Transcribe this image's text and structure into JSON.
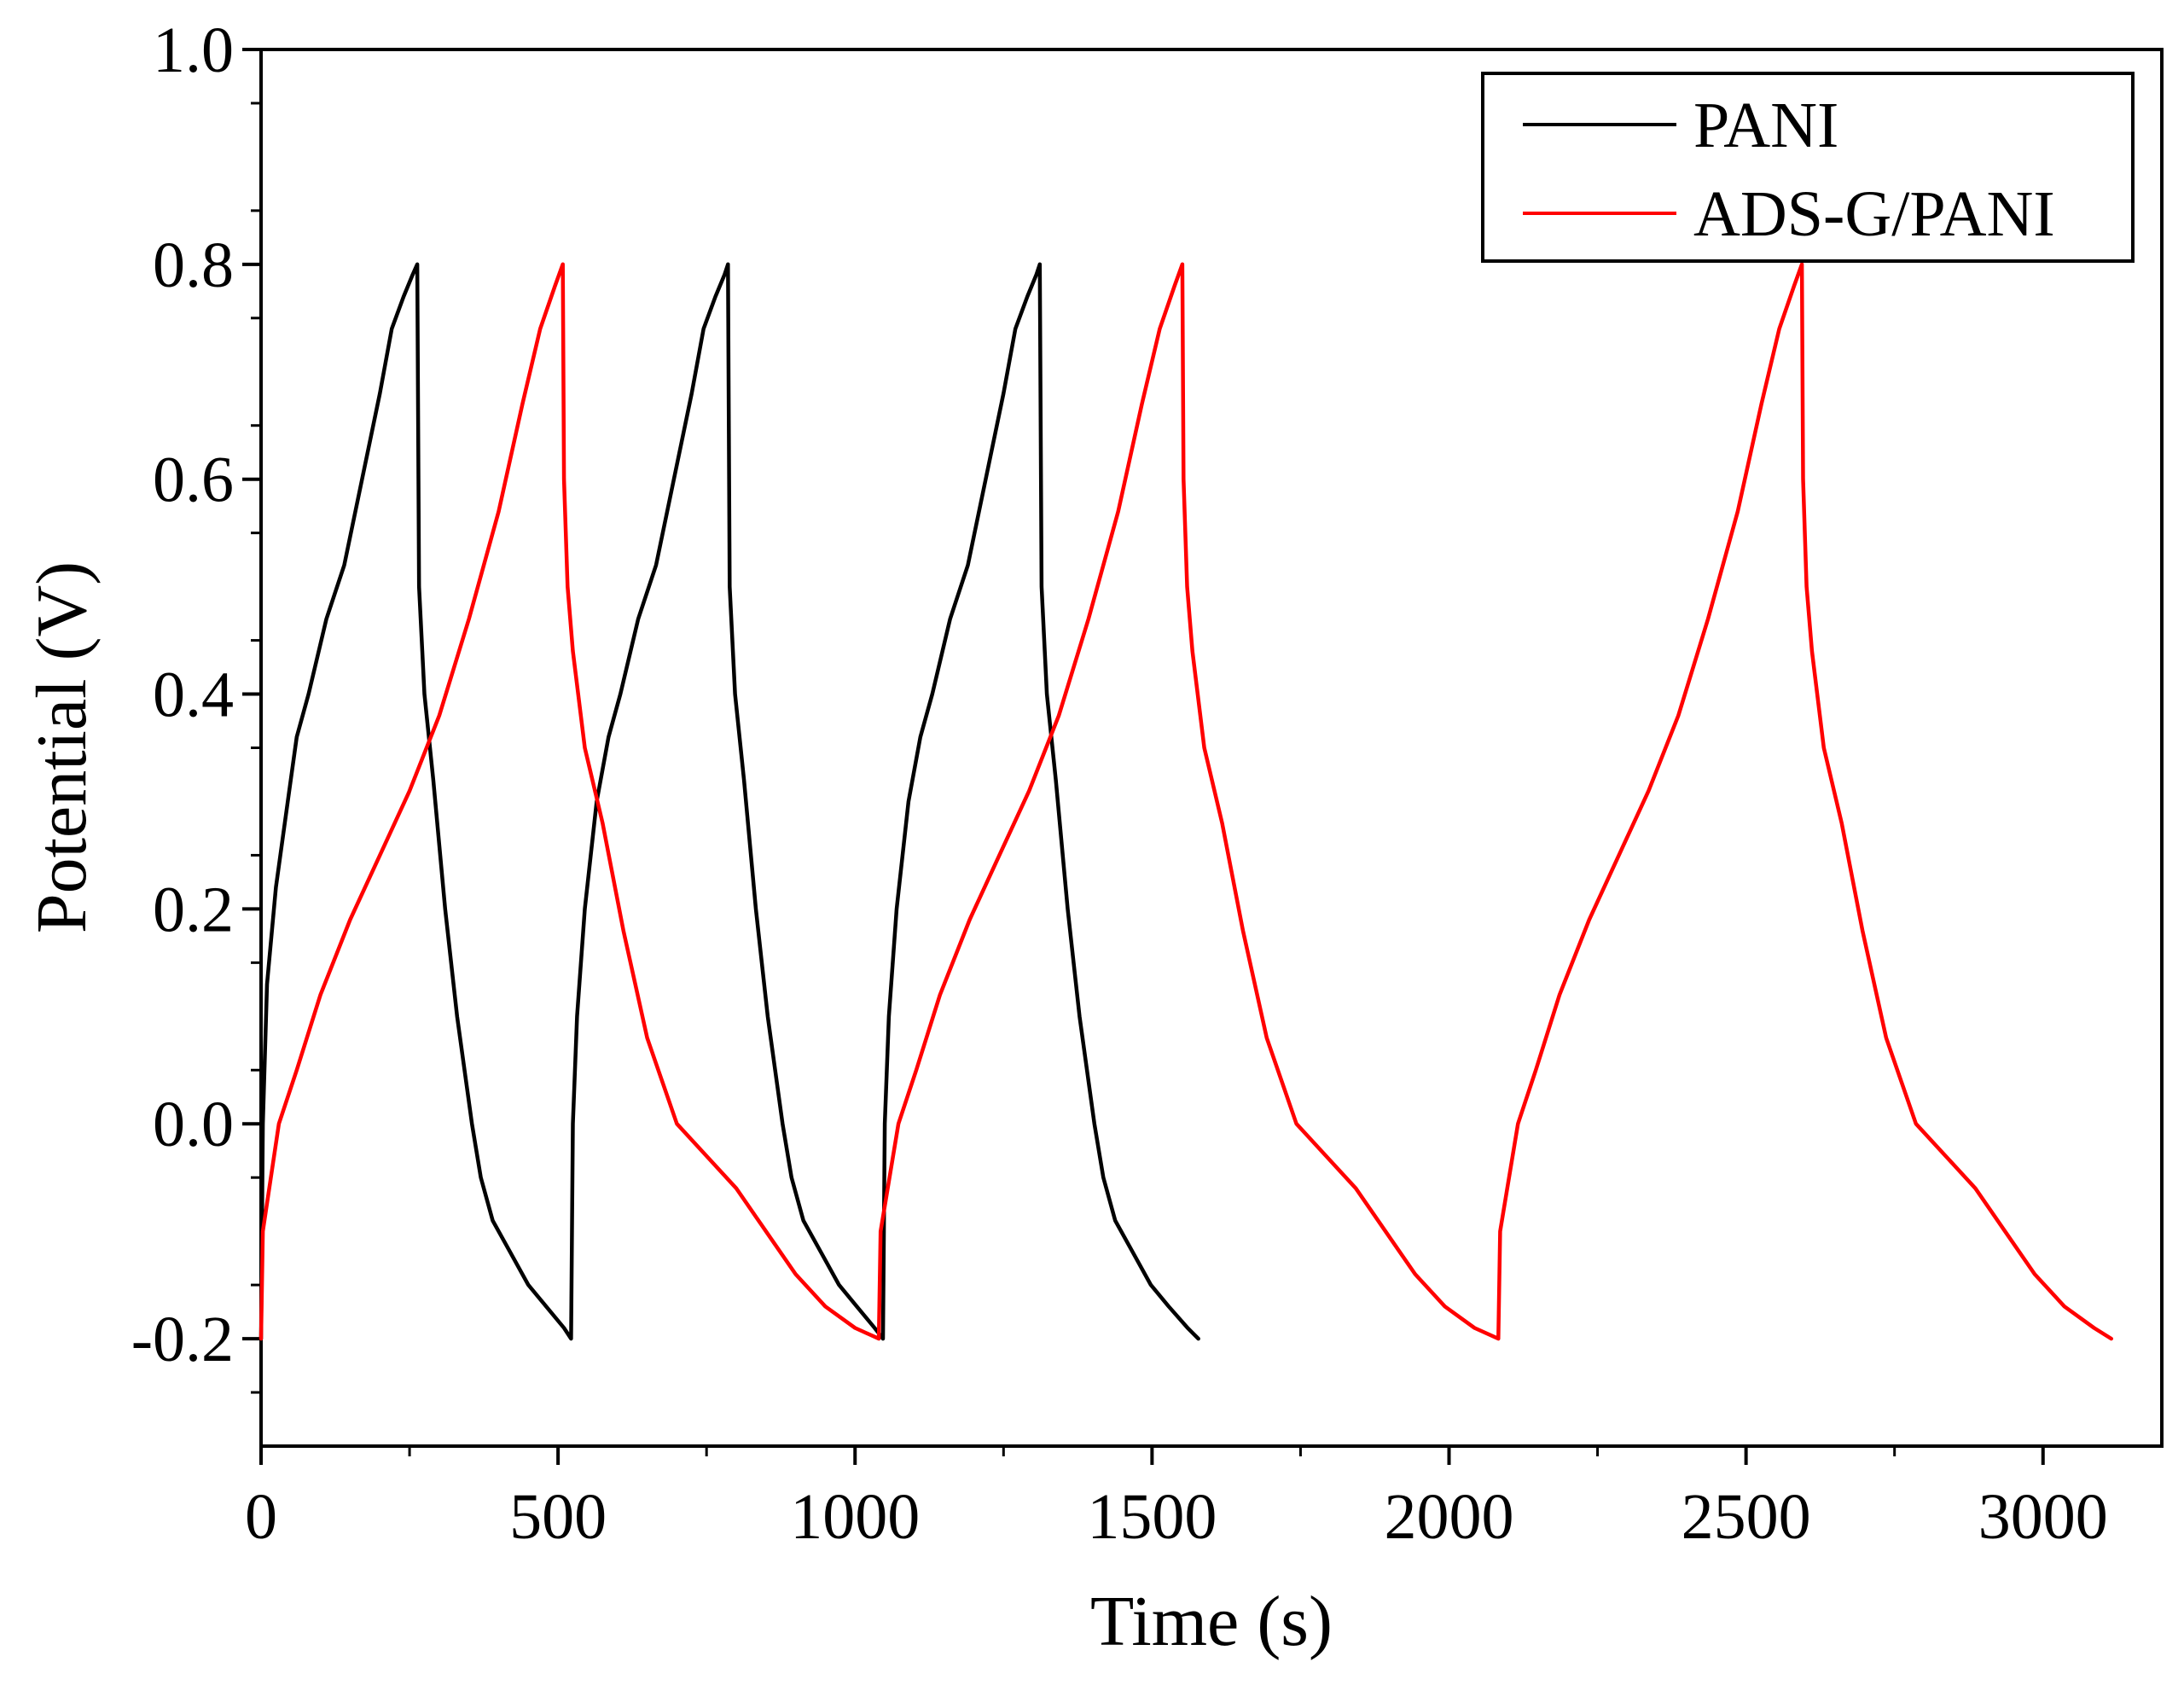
{
  "chart_data": {
    "type": "line",
    "title": "",
    "xlabel": "Time (s)",
    "ylabel": "Potential (V)",
    "xlim": [
      0,
      3200
    ],
    "ylim": [
      -0.3,
      1.0
    ],
    "xticks": [
      0,
      500,
      1000,
      1500,
      2000,
      2500,
      3000
    ],
    "xtick_labels": [
      "0",
      "500",
      "1000",
      "1500",
      "2000",
      "2500",
      "3000"
    ],
    "yticks": [
      -0.2,
      0.0,
      0.2,
      0.4,
      0.6,
      0.8,
      1.0
    ],
    "ytick_labels": [
      "-0.2",
      "0.0",
      "0.2",
      "0.4",
      "0.6",
      "0.8",
      "1.0"
    ],
    "grid": false,
    "legend_position": "top-right",
    "series": [
      {
        "name": "PANI",
        "color": "#000000",
        "points": [
          [
            0,
            -0.2
          ],
          [
            3,
            0.0
          ],
          [
            10,
            0.13
          ],
          [
            25,
            0.22
          ],
          [
            45,
            0.3
          ],
          [
            60,
            0.36
          ],
          [
            80,
            0.4
          ],
          [
            110,
            0.47
          ],
          [
            140,
            0.52
          ],
          [
            170,
            0.6
          ],
          [
            200,
            0.68
          ],
          [
            220,
            0.74
          ],
          [
            240,
            0.77
          ],
          [
            255,
            0.79
          ],
          [
            263,
            0.8
          ],
          [
            266,
            0.5
          ],
          [
            275,
            0.4
          ],
          [
            290,
            0.32
          ],
          [
            310,
            0.2
          ],
          [
            330,
            0.1
          ],
          [
            355,
            0.0
          ],
          [
            370,
            -0.05
          ],
          [
            390,
            -0.09
          ],
          [
            420,
            -0.12
          ],
          [
            450,
            -0.15
          ],
          [
            480,
            -0.17
          ],
          [
            510,
            -0.19
          ],
          [
            522,
            -0.2
          ],
          [
            525,
            0.0
          ],
          [
            532,
            0.1
          ],
          [
            545,
            0.2
          ],
          [
            565,
            0.3
          ],
          [
            585,
            0.36
          ],
          [
            605,
            0.4
          ],
          [
            635,
            0.47
          ],
          [
            665,
            0.52
          ],
          [
            695,
            0.6
          ],
          [
            725,
            0.68
          ],
          [
            745,
            0.74
          ],
          [
            765,
            0.77
          ],
          [
            780,
            0.79
          ],
          [
            786,
            0.8
          ],
          [
            789,
            0.5
          ],
          [
            798,
            0.4
          ],
          [
            813,
            0.32
          ],
          [
            833,
            0.2
          ],
          [
            853,
            0.1
          ],
          [
            878,
            0.0
          ],
          [
            893,
            -0.05
          ],
          [
            913,
            -0.09
          ],
          [
            943,
            -0.12
          ],
          [
            973,
            -0.15
          ],
          [
            1003,
            -0.17
          ],
          [
            1033,
            -0.19
          ],
          [
            1047,
            -0.2
          ],
          [
            1050,
            0.0
          ],
          [
            1057,
            0.1
          ],
          [
            1070,
            0.2
          ],
          [
            1090,
            0.3
          ],
          [
            1110,
            0.36
          ],
          [
            1130,
            0.4
          ],
          [
            1160,
            0.47
          ],
          [
            1190,
            0.52
          ],
          [
            1220,
            0.6
          ],
          [
            1250,
            0.68
          ],
          [
            1270,
            0.74
          ],
          [
            1290,
            0.77
          ],
          [
            1305,
            0.79
          ],
          [
            1311,
            0.8
          ],
          [
            1314,
            0.5
          ],
          [
            1323,
            0.4
          ],
          [
            1338,
            0.32
          ],
          [
            1358,
            0.2
          ],
          [
            1378,
            0.1
          ],
          [
            1403,
            0.0
          ],
          [
            1418,
            -0.05
          ],
          [
            1438,
            -0.09
          ],
          [
            1468,
            -0.12
          ],
          [
            1498,
            -0.15
          ],
          [
            1528,
            -0.17
          ],
          [
            1560,
            -0.19
          ],
          [
            1578,
            -0.2
          ]
        ]
      },
      {
        "name": "ADS-G/PANI",
        "color": "#ff0000",
        "points": [
          [
            0,
            -0.2
          ],
          [
            3,
            -0.1
          ],
          [
            30,
            0.0
          ],
          [
            60,
            0.05
          ],
          [
            100,
            0.12
          ],
          [
            150,
            0.19
          ],
          [
            200,
            0.25
          ],
          [
            250,
            0.31
          ],
          [
            300,
            0.38
          ],
          [
            350,
            0.47
          ],
          [
            400,
            0.57
          ],
          [
            440,
            0.67
          ],
          [
            470,
            0.74
          ],
          [
            495,
            0.78
          ],
          [
            508,
            0.8
          ],
          [
            510,
            0.6
          ],
          [
            516,
            0.5
          ],
          [
            525,
            0.44
          ],
          [
            545,
            0.35
          ],
          [
            575,
            0.28
          ],
          [
            610,
            0.18
          ],
          [
            650,
            0.08
          ],
          [
            700,
            0.0
          ],
          [
            750,
            -0.03
          ],
          [
            800,
            -0.06
          ],
          [
            850,
            -0.1
          ],
          [
            900,
            -0.14
          ],
          [
            950,
            -0.17
          ],
          [
            1000,
            -0.19
          ],
          [
            1040,
            -0.2
          ],
          [
            1043,
            -0.1
          ],
          [
            1073,
            0.0
          ],
          [
            1103,
            0.05
          ],
          [
            1143,
            0.12
          ],
          [
            1193,
            0.19
          ],
          [
            1243,
            0.25
          ],
          [
            1293,
            0.31
          ],
          [
            1343,
            0.38
          ],
          [
            1393,
            0.47
          ],
          [
            1443,
            0.57
          ],
          [
            1483,
            0.67
          ],
          [
            1513,
            0.74
          ],
          [
            1538,
            0.78
          ],
          [
            1551,
            0.8
          ],
          [
            1553,
            0.6
          ],
          [
            1559,
            0.5
          ],
          [
            1568,
            0.44
          ],
          [
            1588,
            0.35
          ],
          [
            1618,
            0.28
          ],
          [
            1653,
            0.18
          ],
          [
            1693,
            0.08
          ],
          [
            1743,
            0.0
          ],
          [
            1793,
            -0.03
          ],
          [
            1843,
            -0.06
          ],
          [
            1893,
            -0.1
          ],
          [
            1943,
            -0.14
          ],
          [
            1993,
            -0.17
          ],
          [
            2043,
            -0.19
          ],
          [
            2083,
            -0.2
          ],
          [
            2086,
            -0.1
          ],
          [
            2116,
            0.0
          ],
          [
            2146,
            0.05
          ],
          [
            2186,
            0.12
          ],
          [
            2236,
            0.19
          ],
          [
            2286,
            0.25
          ],
          [
            2336,
            0.31
          ],
          [
            2386,
            0.38
          ],
          [
            2436,
            0.47
          ],
          [
            2486,
            0.57
          ],
          [
            2526,
            0.67
          ],
          [
            2556,
            0.74
          ],
          [
            2581,
            0.78
          ],
          [
            2594,
            0.8
          ],
          [
            2596,
            0.6
          ],
          [
            2602,
            0.5
          ],
          [
            2611,
            0.44
          ],
          [
            2631,
            0.35
          ],
          [
            2661,
            0.28
          ],
          [
            2696,
            0.18
          ],
          [
            2736,
            0.08
          ],
          [
            2786,
            0.0
          ],
          [
            2836,
            -0.03
          ],
          [
            2886,
            -0.06
          ],
          [
            2936,
            -0.1
          ],
          [
            2986,
            -0.14
          ],
          [
            3036,
            -0.17
          ],
          [
            3086,
            -0.19
          ],
          [
            3115,
            -0.2
          ]
        ]
      }
    ]
  }
}
